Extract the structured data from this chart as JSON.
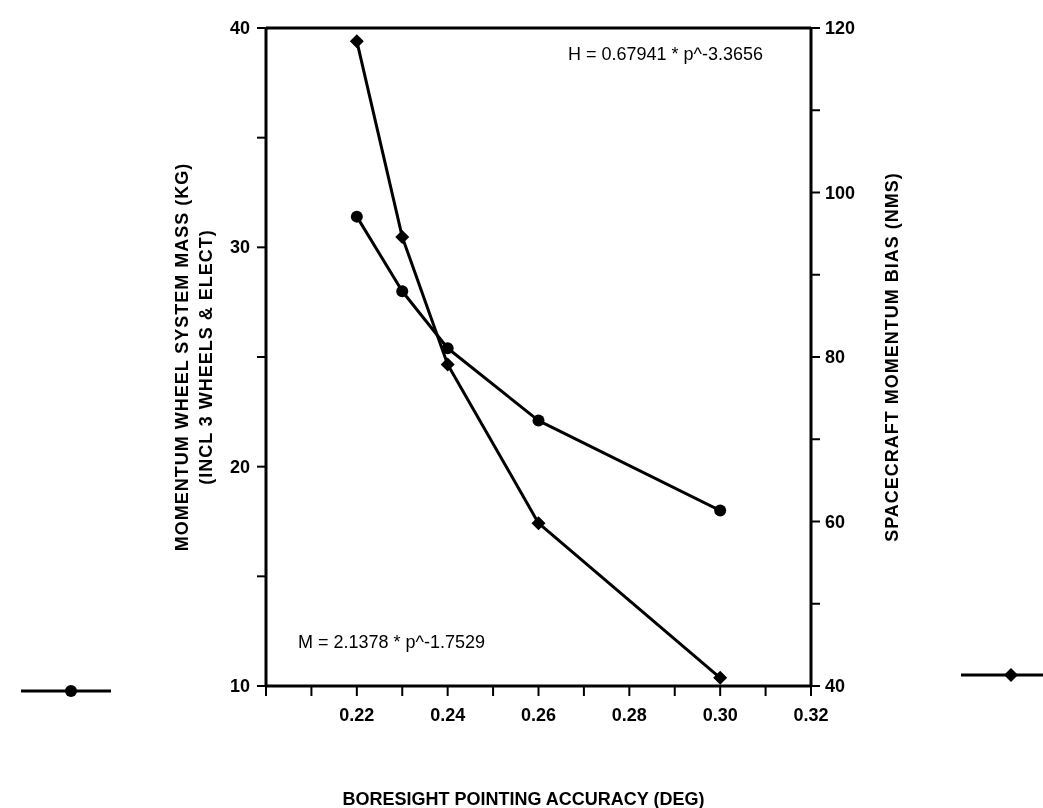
{
  "chart_data": {
    "type": "line",
    "xlabel": "BORESIGHT POINTING ACCURACY (DEG)",
    "ylabel": "MOMENTUM WHEEL SYSTEM MASS (KG)\n(INCL 3 WHEELS & ELECT)",
    "y2label": "SPACECRAFT MOMENTUM BIAS (NMS)",
    "x": [
      0.22,
      0.23,
      0.24,
      0.26,
      0.3
    ],
    "series": [
      {
        "color": "#000000",
        "marker": "circle",
        "values": [
          31.4,
          28.0,
          25.4,
          22.1,
          18.0
        ]
      },
      {
        "color": "#000000",
        "marker": "diamond",
        "axis": "y2",
        "values": [
          118.4,
          94.6,
          79.1,
          59.8,
          41.0
        ]
      }
    ],
    "xlim": [
      0.2,
      0.32
    ],
    "xticks": [
      {
        "value": 0.2,
        "label": null
      },
      {
        "value": 0.21,
        "label": null
      },
      0.22,
      {
        "value": 0.23,
        "label": null
      },
      0.24,
      {
        "value": 0.25,
        "label": null
      },
      0.26,
      {
        "value": 0.27,
        "label": null
      },
      0.28,
      {
        "value": 0.29,
        "label": null
      },
      {
        "value": 0.3,
        "label": "0.30"
      },
      {
        "value": 0.31,
        "label": null
      },
      0.32
    ],
    "ylim": [
      10,
      40
    ],
    "yticks": [
      10,
      {
        "value": 15,
        "label": null
      },
      20,
      {
        "value": 25,
        "label": null
      },
      30,
      {
        "value": 35,
        "label": null
      },
      40
    ],
    "y2lim": [
      40,
      120
    ],
    "y2ticks": [
      40,
      {
        "value": 50,
        "label": null
      },
      60,
      {
        "value": 70,
        "label": null
      },
      80,
      {
        "value": 90,
        "label": null
      },
      100,
      {
        "value": 110,
        "label": null
      },
      120
    ],
    "annotations": [
      "H = 0.67941 * p^-3.3656",
      "M = 2.1378 * p^-1.7529"
    ],
    "line_style": "solid",
    "grid": false
  }
}
